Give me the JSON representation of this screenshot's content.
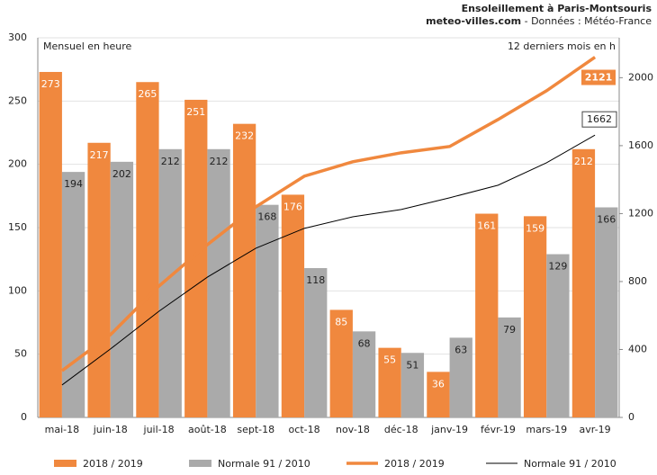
{
  "chart_data": {
    "type": "combo",
    "title": "Ensoleillement à Paris-Montsouris",
    "subtitle_source": "meteo-villes.com",
    "subtitle_rest": " - Données : Météo-France",
    "y_annotation": "Mensuel en heure",
    "y2_annotation": "12 derniers mois en h",
    "categories": [
      "mai-18",
      "juin-18",
      "juil-18",
      "août-18",
      "sept-18",
      "oct-18",
      "nov-18",
      "déc-18",
      "janv-19",
      "févr-19",
      "mars-19",
      "avr-19"
    ],
    "ylim": [
      0,
      300
    ],
    "yticks": [
      0,
      50,
      100,
      150,
      200,
      250,
      300
    ],
    "y2lim": [
      0,
      2235
    ],
    "y2ticks": [
      0,
      400,
      800,
      1200,
      1600,
      2000
    ],
    "grid": true,
    "series": [
      {
        "name": "2018 / 2019",
        "type": "bar",
        "color": "#f0883e",
        "values": [
          273,
          217,
          265,
          251,
          232,
          176,
          85,
          55,
          36,
          161,
          159,
          212
        ]
      },
      {
        "name": "Normale 91 / 2010",
        "type": "bar",
        "color": "#aaaaaa",
        "values": [
          194,
          202,
          212,
          212,
          168,
          118,
          68,
          51,
          63,
          79,
          129,
          166
        ]
      },
      {
        "name": "2018 / 2019",
        "type": "line",
        "axis": "y2",
        "color": "#f0883e",
        "values": [
          275,
          487,
          773,
          1017,
          1240,
          1420,
          1505,
          1558,
          1595,
          1754,
          1923,
          2121
        ]
      },
      {
        "name": "Normale 91 / 2010",
        "type": "line",
        "axis": "y2",
        "color": "#000000",
        "values": [
          191,
          403,
          625,
          826,
          996,
          1113,
          1181,
          1224,
          1293,
          1367,
          1499,
          1662
        ]
      }
    ]
  }
}
